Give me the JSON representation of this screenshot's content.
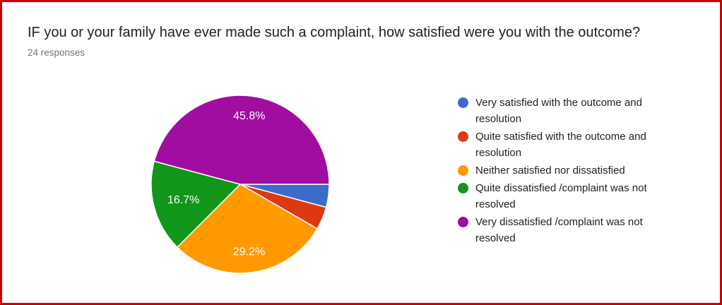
{
  "frame": {
    "border_color": "#cc0000",
    "background_color": "#ffffff"
  },
  "header": {
    "title": "IF you or your family have ever made such a complaint, how satisfied were you with the outcome?",
    "responses_label": "24 responses"
  },
  "chart_data": {
    "type": "pie",
    "title": "IF you or your family have ever made such a complaint, how satisfied were you with the outcome?",
    "total_responses": 24,
    "start_angle_deg": 0,
    "direction": "clockwise",
    "legend_position": "right",
    "slices": [
      {
        "label": "Very satisfied with the outcome and resolution",
        "value": 1,
        "percent": 4.2,
        "percent_label": "4.2%",
        "color": "#3d6bc9",
        "show_label": false
      },
      {
        "label": "Quite satisfied with the outcome and resolution",
        "value": 1,
        "percent": 4.2,
        "percent_label": "4.2%",
        "color": "#dc3912",
        "show_label": false
      },
      {
        "label": "Neither satisfied nor dissatisfied",
        "value": 7,
        "percent": 29.2,
        "percent_label": "29.2%",
        "color": "#ff9900",
        "show_label": true
      },
      {
        "label": "Quite dissatisfied /complaint was not resolved",
        "value": 4,
        "percent": 16.7,
        "percent_label": "16.7%",
        "color": "#109618",
        "show_label": true
      },
      {
        "label": "Very dissatisfied /complaint was not resolved",
        "value": 11,
        "percent": 45.8,
        "percent_label": "45.8%",
        "color": "#a10ca1",
        "show_label": true
      }
    ]
  }
}
